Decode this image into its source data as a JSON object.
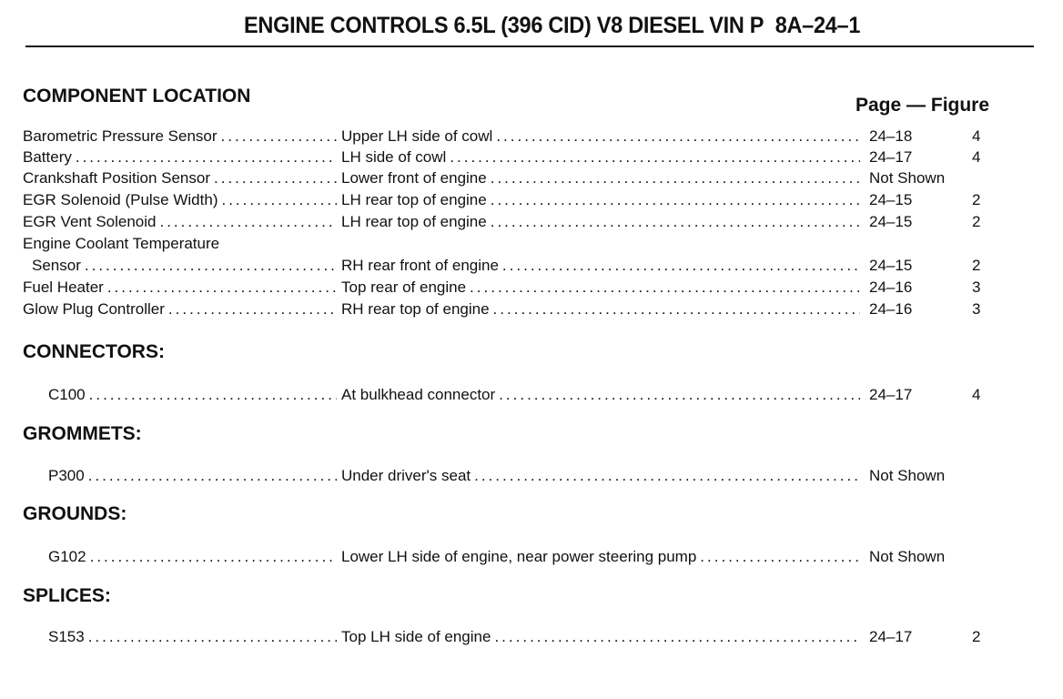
{
  "header": {
    "title": "ENGINE CONTROLS 6.5L (396 CID) V8 DIESEL VIN P",
    "page_number": "8A–24–1"
  },
  "component_location": {
    "heading": "COMPONENT LOCATION",
    "column_heading": "Page — Figure",
    "rows": [
      {
        "name": "Barometric Pressure Sensor",
        "location": "Upper LH side of cowl",
        "page": "24–18",
        "figure": "4"
      },
      {
        "name": "Battery",
        "location": "LH side of cowl",
        "page": "24–17",
        "figure": "4"
      },
      {
        "name": "Crankshaft Position Sensor",
        "location": "Lower front of engine",
        "page": "Not Shown",
        "figure": ""
      },
      {
        "name": "EGR Solenoid (Pulse Width)",
        "location": "LH rear top of engine",
        "page": "24–15",
        "figure": "2"
      },
      {
        "name": "EGR Vent Solenoid",
        "location": "LH rear top of engine",
        "page": "24–15",
        "figure": "2"
      },
      {
        "name": "Engine Coolant Temperature",
        "name_cont": "Sensor",
        "location": "RH rear front of engine",
        "page": "24–15",
        "figure": "2"
      },
      {
        "name": "Fuel Heater",
        "location": "Top rear of engine",
        "page": "24–16",
        "figure": "3"
      },
      {
        "name": "Glow Plug Controller",
        "location": "RH rear top of engine",
        "page": "24–16",
        "figure": "3"
      }
    ]
  },
  "connectors": {
    "heading": "CONNECTORS:",
    "rows": [
      {
        "name": "C100",
        "location": "At bulkhead connector",
        "page": "24–17",
        "figure": "4"
      }
    ]
  },
  "grommets": {
    "heading": "GROMMETS:",
    "rows": [
      {
        "name": "P300",
        "location": "Under driver's seat",
        "page": "Not Shown",
        "figure": ""
      }
    ]
  },
  "grounds": {
    "heading": "GROUNDS:",
    "rows": [
      {
        "name": "G102",
        "location": "Lower LH side of engine, near power steering pump",
        "page": "Not Shown",
        "figure": ""
      }
    ]
  },
  "splices": {
    "heading": "SPLICES:",
    "rows": [
      {
        "name": "S153",
        "location": "Top LH side of engine",
        "page": "24–17",
        "figure": "2"
      }
    ]
  }
}
